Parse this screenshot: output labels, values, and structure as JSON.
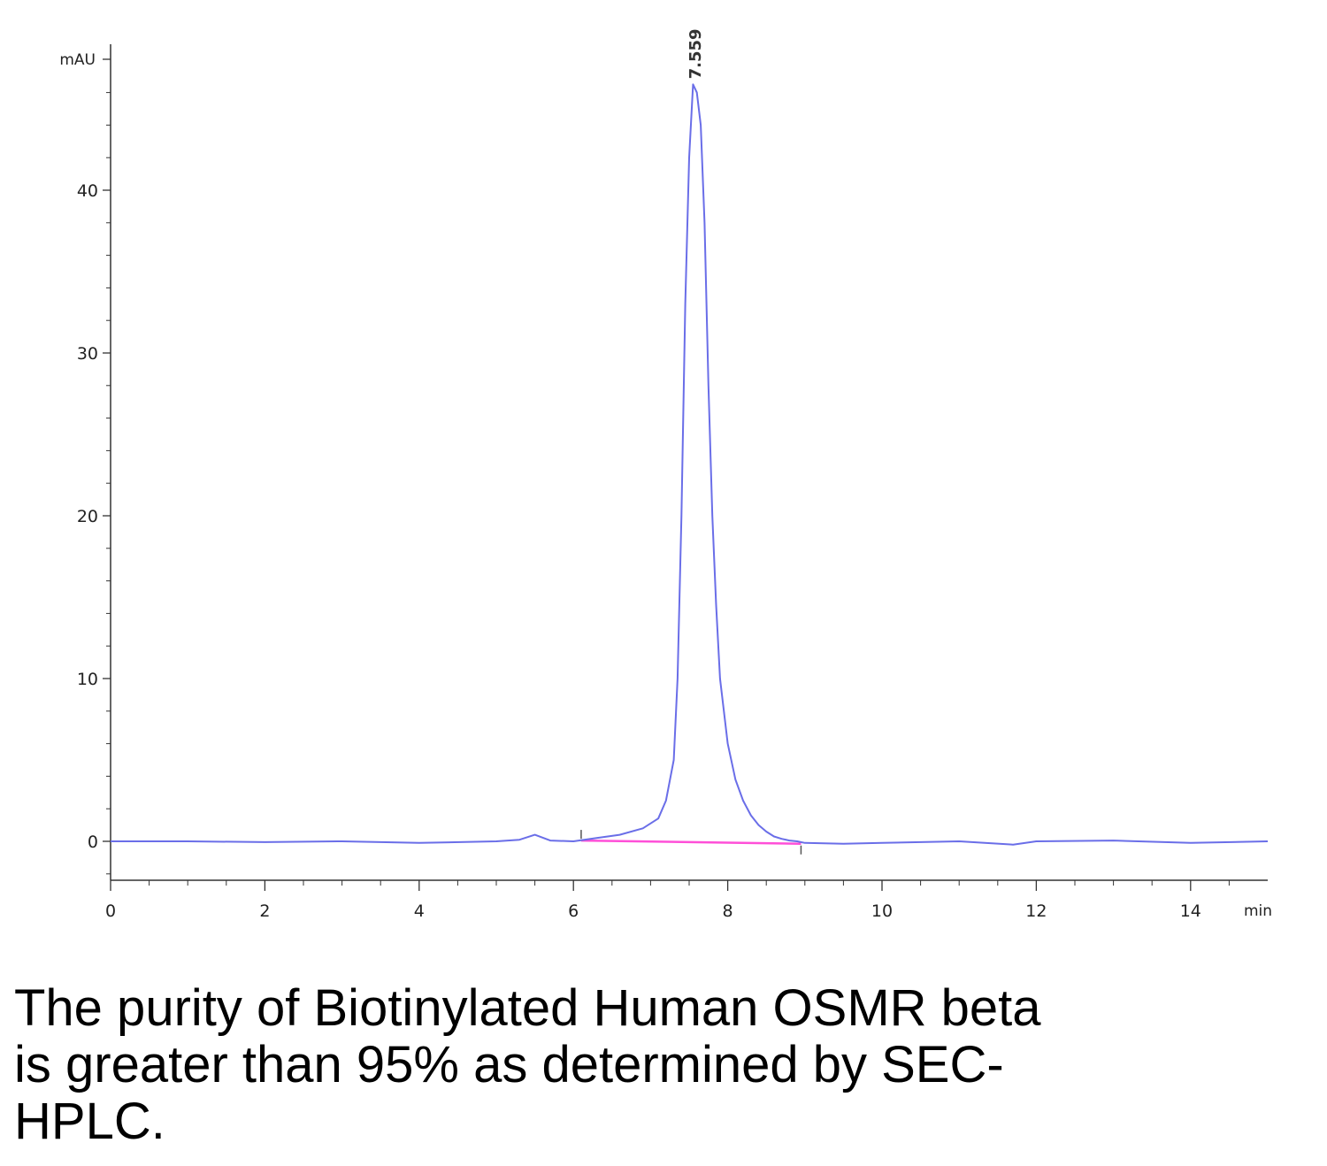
{
  "chart_data": {
    "type": "line",
    "title": "",
    "xlabel": "min",
    "ylabel": "mAU",
    "xlim": [
      0,
      15
    ],
    "ylim": [
      -2.4,
      48.5
    ],
    "x_ticks": [
      0,
      2,
      4,
      6,
      8,
      10,
      12,
      14
    ],
    "x_tick_labels": [
      "0",
      "2",
      "4",
      "6",
      "8",
      "10",
      "12",
      "14"
    ],
    "y_ticks": [
      0,
      10,
      20,
      30,
      40
    ],
    "y_tick_labels": [
      "0",
      "10",
      "20",
      "30",
      "40"
    ],
    "grid": false,
    "series": [
      {
        "color": "#6a6ee8",
        "x": [
          0,
          1,
          2,
          3,
          4,
          5,
          5.3,
          5.5,
          5.7,
          6.0,
          6.3,
          6.6,
          6.9,
          7.1,
          7.2,
          7.3,
          7.35,
          7.4,
          7.45,
          7.5,
          7.55,
          7.6,
          7.65,
          7.7,
          7.75,
          7.8,
          7.85,
          7.9,
          8.0,
          8.1,
          8.2,
          8.3,
          8.4,
          8.5,
          8.6,
          8.7,
          8.8,
          8.9,
          9.0,
          9.5,
          10,
          11,
          11.7,
          12,
          13,
          14,
          15
        ],
        "y": [
          0,
          0,
          -0.05,
          0,
          -0.1,
          0,
          0.1,
          0.4,
          0.05,
          0,
          0.2,
          0.4,
          0.8,
          1.4,
          2.5,
          5,
          10,
          20,
          33,
          42,
          46.5,
          46,
          44,
          38,
          28,
          20,
          14.5,
          10,
          6,
          3.8,
          2.5,
          1.6,
          1.0,
          0.6,
          0.3,
          0.15,
          0.05,
          0,
          -0.1,
          -0.15,
          -0.1,
          0,
          -0.2,
          0,
          0.05,
          -0.1,
          0
        ]
      }
    ],
    "baseline": {
      "color": "#ff4fd8",
      "x": [
        6.1,
        8.95
      ],
      "y": [
        0.05,
        -0.15
      ]
    },
    "annotations": [
      {
        "text": "7.559",
        "x": 7.559,
        "y": 46.5
      }
    ]
  },
  "caption": {
    "lines": [
      "The purity of Biotinylated Human OSMR beta",
      "is greater than 95% as determined by SEC-",
      "HPLC."
    ]
  }
}
